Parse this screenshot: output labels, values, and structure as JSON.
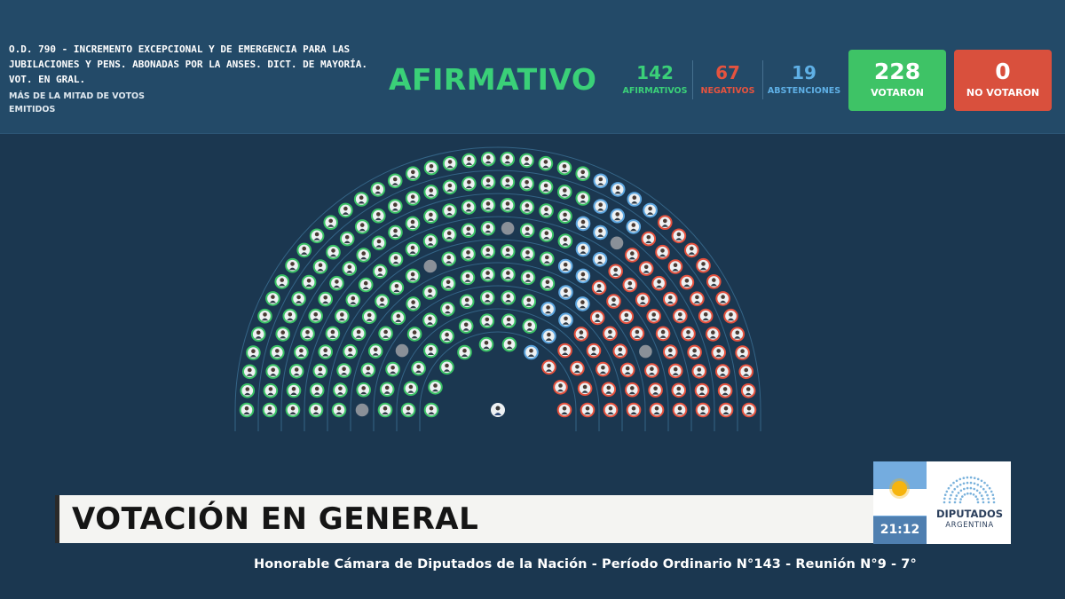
{
  "header": {
    "motion_text": "O.D. 790 - INCREMENTO EXCEPCIONAL Y DE EMERGENCIA PARA LAS JUBILACIONES Y PENS. ABONADAS POR LA ANSES. DICT. DE MAYORÍA. VOT. EN GRAL.",
    "majority_rule": "MÁS DE LA MITAD DE VOTOS EMITIDOS",
    "result": "AFIRMATIVO",
    "affirmative": {
      "count": "142",
      "label": "AFIRMATIVOS"
    },
    "negative": {
      "count": "67",
      "label": "NEGATIVOS"
    },
    "abstentions": {
      "count": "19",
      "label": "ABSTENCIONES"
    },
    "voted": {
      "count": "228",
      "label": "VOTARON"
    },
    "not_voted": {
      "count": "0",
      "label": "NO VOTARON"
    }
  },
  "hemicycle": {
    "colors": {
      "affirmative": "#3ac165",
      "negative": "#e4513d",
      "abstention": "#5ea7e0",
      "absent": "#8a9098",
      "background": "#1b3750"
    },
    "seat_totals": {
      "affirmative": 142,
      "negative": 67,
      "abstention": 19
    },
    "president_icon": "person-icon"
  },
  "lower_third": {
    "title": "VOTACIÓN EN GENERAL",
    "clock": "21:12",
    "brand_name": "DIPUTADOS",
    "brand_country": "ARGENTINA",
    "flag_icon": "argentina-flag-icon"
  },
  "ticker": {
    "text": "Honorable Cámara de Diputados de la Nación - Período Ordinario N°143 - Reunión N°9 - 7°"
  }
}
